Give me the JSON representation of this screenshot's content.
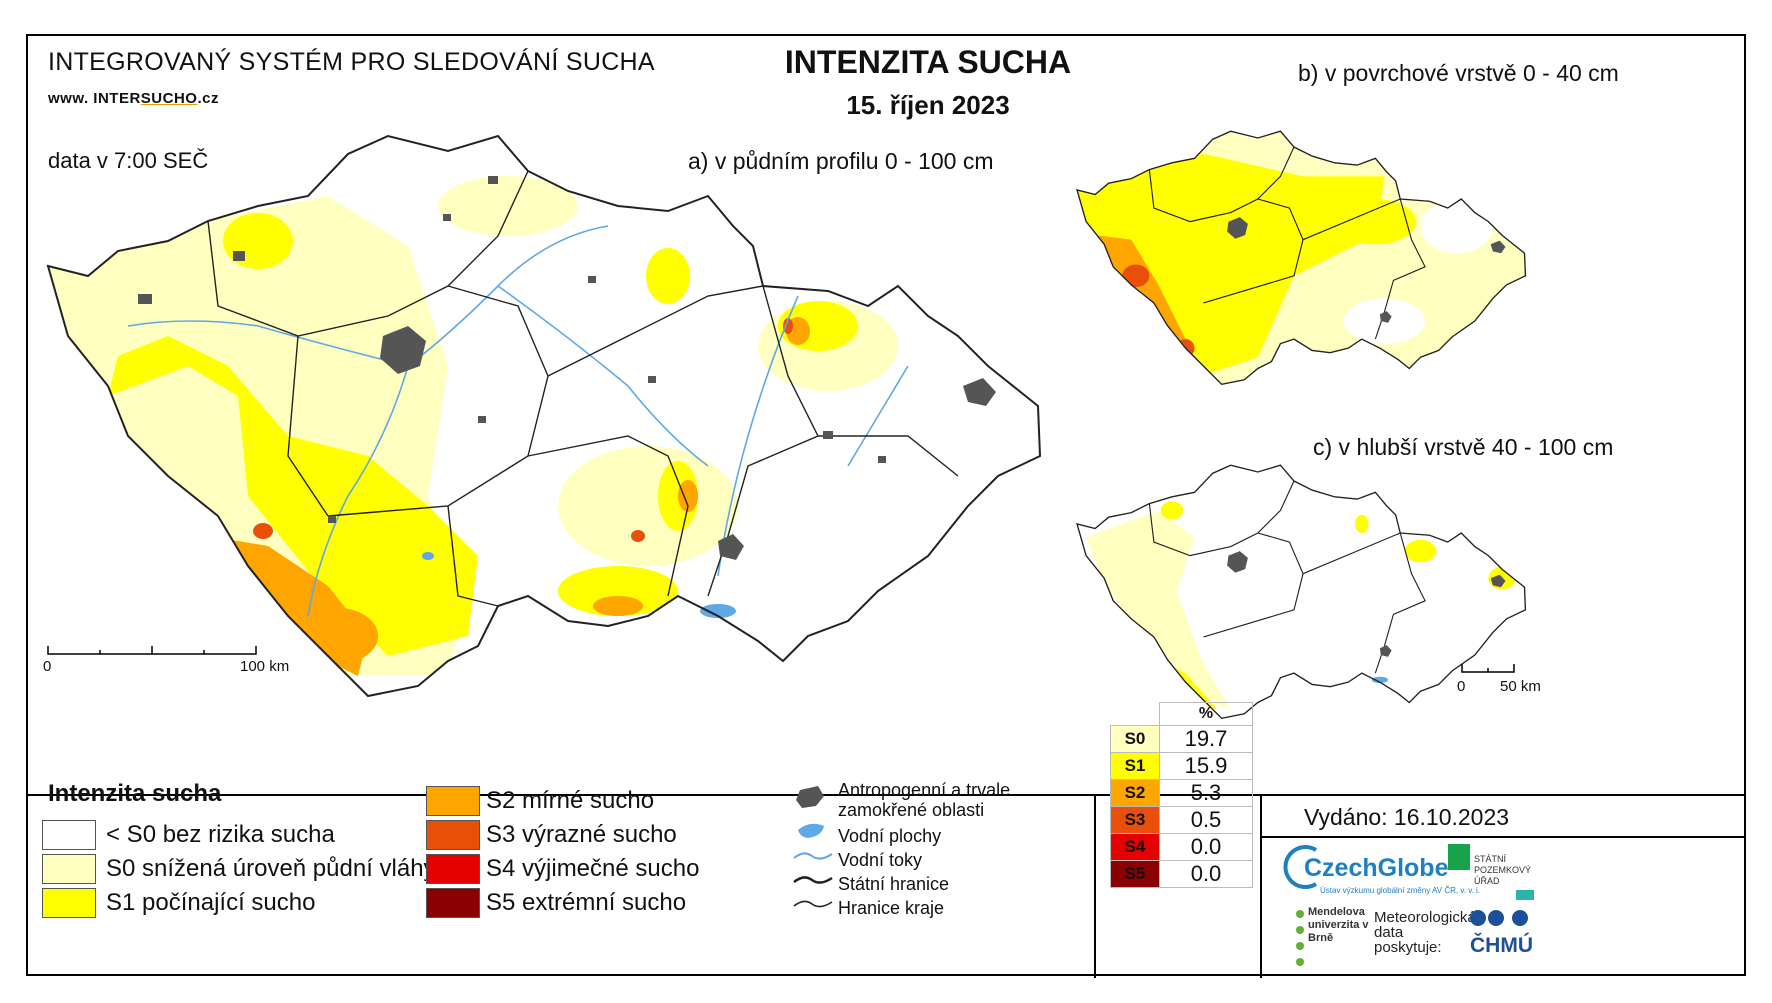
{
  "header": {
    "system_title": "INTEGROVANÝ SYSTÉM PRO SLEDOVÁNÍ SUCHA",
    "website_prefix": "www. INTER",
    "website_highlight": "SUCHO",
    "website_suffix": ".cz",
    "data_time": "data v 7:00 SEČ",
    "main_title": "INTENZITA SUCHA",
    "date": "15. říjen 2023"
  },
  "panels": {
    "a_label": "a) v půdním profilu 0 - 100 cm",
    "b_label": "b) v povrchové vrstvě 0 - 40 cm",
    "c_label": "c) v hlubší vrstvě 40 - 100 cm"
  },
  "scales": {
    "main_zero": "0",
    "main_end": "100 km",
    "small_zero": "0",
    "small_end": "50 km"
  },
  "legend": {
    "title": "Intenzita sucha",
    "classes": [
      {
        "label": "< S0 bez rizika sucha",
        "color": "#ffffff"
      },
      {
        "label": "S0 snížená úroveň půdní vláhy",
        "color": "#ffffc0"
      },
      {
        "label": "S1 počínající sucho",
        "color": "#ffff00"
      },
      {
        "label": "S2 mírné sucho",
        "color": "#ffa500"
      },
      {
        "label": "S3 výrazné sucho",
        "color": "#e8500a"
      },
      {
        "label": "S4 výjimečné sucho",
        "color": "#e60000"
      },
      {
        "label": "S5 extrémní sucho",
        "color": "#8b0000"
      }
    ],
    "symbols": {
      "urban": "Antropogenní a trvale zamokřené oblasti",
      "water_bodies": "Vodní plochy",
      "rivers": "Vodní toky",
      "state_border": "Státní hranice",
      "region_border": "Hranice kraje"
    }
  },
  "stats_table": {
    "header": "%",
    "rows": [
      {
        "class": "S0",
        "value": "19.7",
        "color": "#ffffc0"
      },
      {
        "class": "S1",
        "value": "15.9",
        "color": "#ffff00"
      },
      {
        "class": "S2",
        "value": "5.3",
        "color": "#ffa500"
      },
      {
        "class": "S3",
        "value": "0.5",
        "color": "#e8500a"
      },
      {
        "class": "S4",
        "value": "0.0",
        "color": "#e60000"
      },
      {
        "class": "S5",
        "value": "0.0",
        "color": "#8b0000"
      }
    ]
  },
  "footer": {
    "issued": "Vydáno: 16.10.2023",
    "logo_czechglobe": "CzechGlobe",
    "logo_czechglobe_sub": "Ústav výzkumu globální změny AV ČR, v. v. i.",
    "logo_spu": "STÁTNÍ POZEMKOVÝ ÚŘAD",
    "logo_mendel": "Mendelova univerzita v Brně",
    "met_data": "Meteorologická data poskytuje:",
    "logo_chmu": "ČHMÚ"
  }
}
